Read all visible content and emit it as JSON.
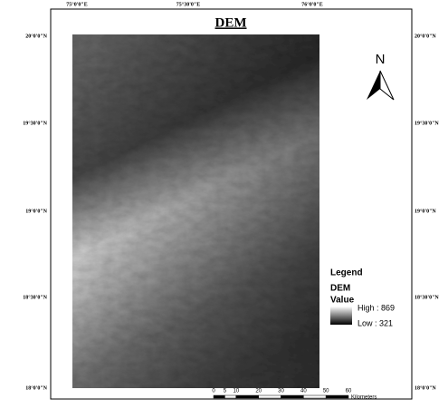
{
  "map": {
    "title": "DEM",
    "top_labels": [
      "75°0'0\"E",
      "75°30'0\"E",
      "76°0'0\"E"
    ],
    "side_labels": [
      "20°0'0\"N",
      "19°30'0\"N",
      "19°0'0\"N",
      "18°30'0\"N",
      "18°0'0\"N"
    ],
    "north": "N",
    "legend": {
      "title": "Legend",
      "layer": "DEM",
      "field": "Value",
      "high": "High : 869",
      "low": "Low : 321"
    },
    "scale_bar": {
      "ticks": [
        0,
        5,
        10,
        20,
        30,
        40,
        50,
        60
      ],
      "unit": "Kilometers"
    }
  }
}
